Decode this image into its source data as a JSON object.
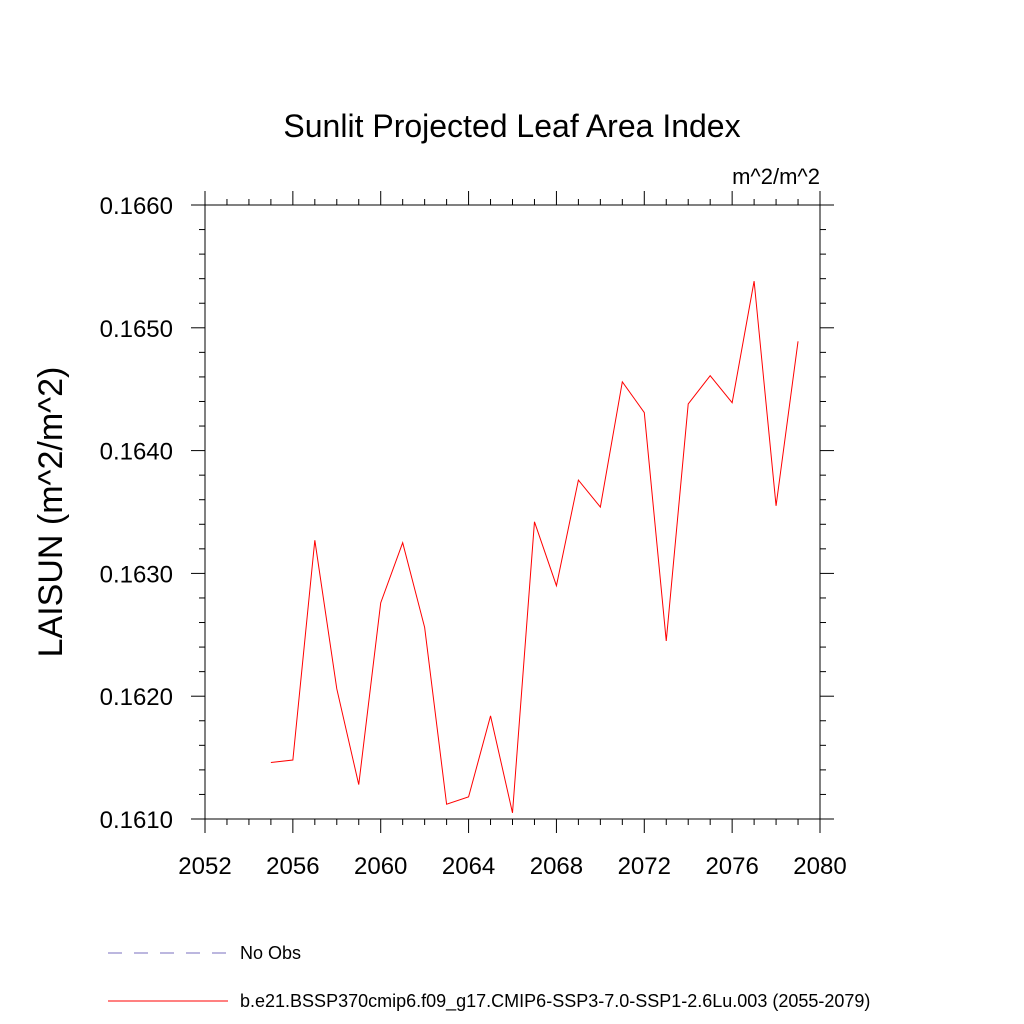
{
  "chart_data": {
    "type": "line",
    "title": "Sunlit Projected Leaf Area Index",
    "units": "m^2/m^2",
    "ylabel": "LAISUN  (m^2/m^2)",
    "xlabel": "",
    "xlim": [
      2052,
      2080
    ],
    "ylim": [
      0.161,
      0.166
    ],
    "xticks": [
      2052,
      2056,
      2060,
      2064,
      2068,
      2072,
      2076,
      2080
    ],
    "yticks": [
      0.161,
      0.162,
      0.163,
      0.164,
      0.165,
      0.166
    ],
    "xtick_labels": [
      "2052",
      "2056",
      "2060",
      "2064",
      "2068",
      "2072",
      "2076",
      "2080"
    ],
    "ytick_labels": [
      "0.1610",
      "0.1620",
      "0.1630",
      "0.1640",
      "0.1650",
      "0.1660"
    ],
    "x": [
      2055,
      2056,
      2057,
      2058,
      2059,
      2060,
      2061,
      2062,
      2063,
      2064,
      2065,
      2066,
      2067,
      2068,
      2069,
      2070,
      2071,
      2072,
      2073,
      2074,
      2075,
      2076,
      2077,
      2078,
      2079
    ],
    "series": [
      {
        "name": "b.e21.BSSP370cmip6.f09_g17.CMIP6-SSP3-7.0-SSP1-2.6Lu.003 (2055-2079)",
        "color": "#ff0000",
        "values": [
          0.16146,
          0.16148,
          0.16327,
          0.16206,
          0.16128,
          0.16276,
          0.16325,
          0.16256,
          0.16112,
          0.16118,
          0.16184,
          0.16105,
          0.16342,
          0.1629,
          0.16376,
          0.16354,
          0.16456,
          0.16431,
          0.16245,
          0.16438,
          0.16461,
          0.16439,
          0.16538,
          0.16355,
          0.16489
        ]
      }
    ],
    "legend": [
      {
        "label": "No Obs",
        "color": "#7a6fbf",
        "style": "dashed"
      },
      {
        "label": "b.e21.BSSP370cmip6.f09_g17.CMIP6-SSP3-7.0-SSP1-2.6Lu.003 (2055-2079)",
        "color": "#ff0000",
        "style": "solid"
      }
    ]
  }
}
